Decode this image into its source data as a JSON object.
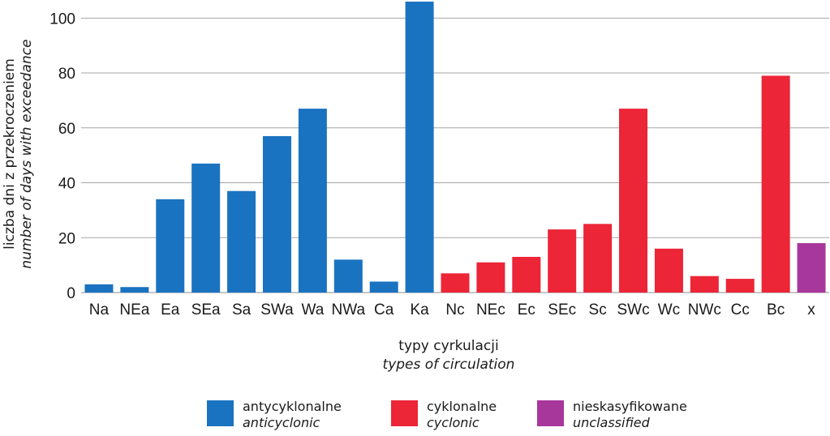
{
  "chart_data": {
    "type": "bar",
    "categories": [
      "Na",
      "NEa",
      "Ea",
      "SEa",
      "Sa",
      "SWa",
      "Wa",
      "NWa",
      "Ca",
      "Ka",
      "Nc",
      "NEc",
      "Ec",
      "SEc",
      "Sc",
      "SWc",
      "Wc",
      "NWc",
      "Cc",
      "Bc",
      "x"
    ],
    "values": [
      3,
      2,
      34,
      47,
      37,
      57,
      67,
      12,
      4,
      106,
      7,
      11,
      13,
      23,
      25,
      67,
      16,
      6,
      5,
      79,
      18
    ],
    "groups": [
      "anticyclonic",
      "anticyclonic",
      "anticyclonic",
      "anticyclonic",
      "anticyclonic",
      "anticyclonic",
      "anticyclonic",
      "anticyclonic",
      "anticyclonic",
      "anticyclonic",
      "cyclonic",
      "cyclonic",
      "cyclonic",
      "cyclonic",
      "cyclonic",
      "cyclonic",
      "cyclonic",
      "cyclonic",
      "cyclonic",
      "cyclonic",
      "unclassified"
    ],
    "ylim": [
      0,
      106
    ],
    "yticks": [
      0,
      20,
      40,
      60,
      80,
      100
    ],
    "grid": true,
    "ylabel": "liczba dni z przekroczeniem",
    "ylabel_en": "number of days with exceedance",
    "xlabel": "typy cyrkulacji",
    "xlabel_en": "types of circulation",
    "legend_position": "bottom"
  },
  "legend": [
    {
      "key": "anticyclonic",
      "label": "antycyklonalne",
      "label_en": "anticyclonic",
      "color": "#1a73c1"
    },
    {
      "key": "cyclonic",
      "label": "cyklonalne",
      "label_en": "cyclonic",
      "color": "#ec2537"
    },
    {
      "key": "unclassified",
      "label": "nieskasyfikowane",
      "label_en": "unclassified",
      "color": "#a8379c"
    }
  ],
  "colors": {
    "grid": "#a6a6a6",
    "axis": "#8c8c8c"
  }
}
